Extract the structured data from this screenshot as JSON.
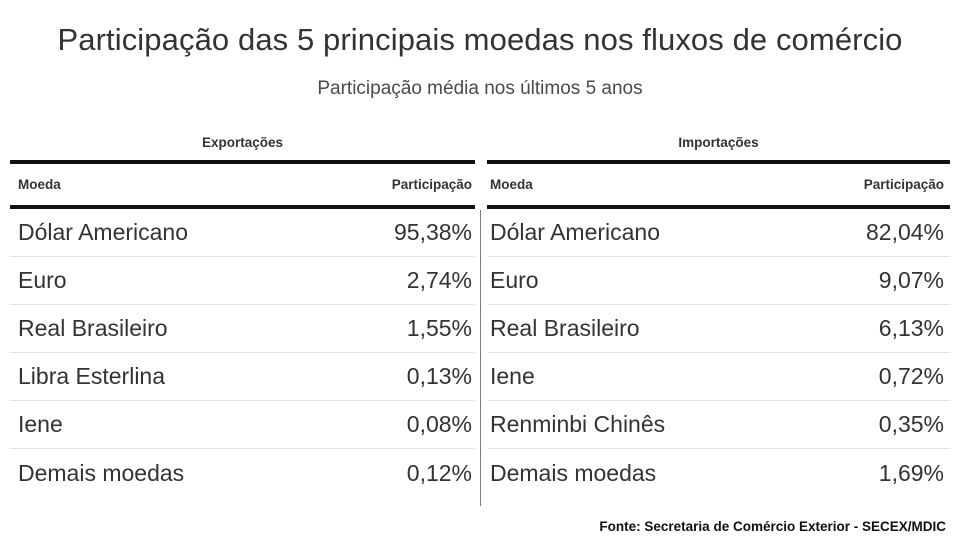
{
  "title": "Participação das 5 principais moedas nos fluxos de comércio",
  "subtitle": "Participação média nos últimos 5 anos",
  "source": "Fonte: Secretaria de Comércio Exterior - SECEX/MDIC",
  "chart_data": [
    {
      "type": "table",
      "title": "Exportações",
      "columns": [
        "Moeda",
        "Participação"
      ],
      "rows": [
        [
          "Dólar Americano",
          "95,38%"
        ],
        [
          "Euro",
          "2,74%"
        ],
        [
          "Real Brasileiro",
          "1,55%"
        ],
        [
          "Libra Esterlina",
          "0,13%"
        ],
        [
          "Iene",
          "0,08%"
        ],
        [
          "Demais moedas",
          "0,12%"
        ]
      ]
    },
    {
      "type": "table",
      "title": "Importações",
      "columns": [
        "Moeda",
        "Participação"
      ],
      "rows": [
        [
          "Dólar Americano",
          "82,04%"
        ],
        [
          "Euro",
          "9,07%"
        ],
        [
          "Real Brasileiro",
          "6,13%"
        ],
        [
          "Iene",
          "0,72%"
        ],
        [
          "Renminbi Chinês",
          "0,35%"
        ],
        [
          "Demais moedas",
          "1,69%"
        ]
      ]
    }
  ]
}
